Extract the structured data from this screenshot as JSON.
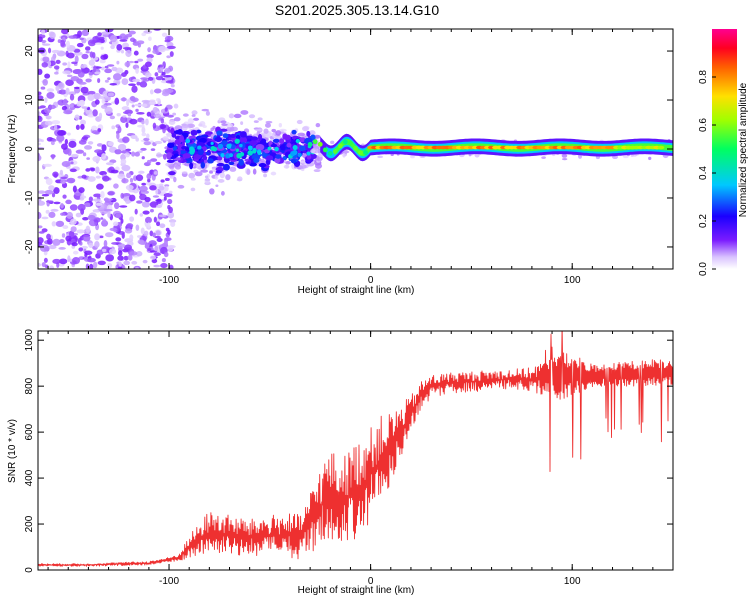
{
  "figure": {
    "title": "S201.2025.305.13.14.G10"
  },
  "chart_data": [
    {
      "type": "heatmap",
      "title": "S201.2025.305.13.14.G10",
      "xlabel": "Height of straight line (km)",
      "ylabel": "Frequency (Hz)",
      "xlim": [
        -165,
        150
      ],
      "ylim": [
        -24.5,
        24.5
      ],
      "xticks": [
        -100,
        0,
        100
      ],
      "yticks": [
        -20,
        -10,
        0,
        10,
        20
      ],
      "grid": false,
      "colorbar": {
        "label": "Normalized spectral amplitude",
        "range": [
          0,
          1
        ],
        "ticks": [
          0.0,
          0.2,
          0.4,
          0.6,
          0.8
        ],
        "tick_labels": [
          "0.0",
          "0.2",
          "0.4",
          "0.6",
          "0.8"
        ],
        "colormap": [
          "#ffffff",
          "#6f00ff",
          "#0000ff",
          "#00ffff",
          "#00ff00",
          "#ffff00",
          "#ff8000",
          "#ff0000",
          "#ff0080"
        ]
      },
      "description_points": {
        "noise_region_x": [
          -165,
          -100
        ],
        "signal_line_start_x": -30,
        "signal_line_freq": 0.3,
        "peak_amplitude_x_range": [
          0,
          120
        ],
        "peak_amplitude": 0.85
      }
    },
    {
      "type": "line",
      "xlabel": "Height of straight line (km)",
      "ylabel": "SNR (10 * v/v)",
      "xlim": [
        -165,
        150
      ],
      "ylim": [
        0,
        1040
      ],
      "xticks": [
        -100,
        0,
        100
      ],
      "yticks": [
        0,
        200,
        400,
        600,
        800,
        1000
      ],
      "grid": false,
      "series": [
        {
          "name": "SNR",
          "color": "#ee3030",
          "x": [
            -165,
            -140,
            -110,
            -100,
            -95,
            -90,
            -80,
            -70,
            -60,
            -50,
            -40,
            -35,
            -30,
            -25,
            -20,
            -15,
            -10,
            -5,
            0,
            5,
            10,
            15,
            20,
            25,
            30,
            40,
            50,
            60,
            70,
            80,
            90,
            95,
            100,
            110,
            120,
            130,
            140,
            150
          ],
          "y": [
            22,
            22,
            30,
            45,
            55,
            100,
            160,
            150,
            140,
            150,
            150,
            140,
            200,
            280,
            330,
            300,
            330,
            360,
            420,
            480,
            530,
            600,
            680,
            760,
            800,
            815,
            820,
            825,
            830,
            830,
            840,
            845,
            850,
            845,
            850,
            855,
            860,
            860
          ],
          "spread": [
            6,
            6,
            8,
            10,
            15,
            50,
            100,
            90,
            80,
            90,
            100,
            100,
            140,
            170,
            200,
            180,
            200,
            220,
            200,
            190,
            160,
            120,
            80,
            60,
            50,
            45,
            45,
            45,
            45,
            50,
            120,
            150,
            130,
            70,
            70,
            80,
            80,
            80
          ]
        }
      ]
    }
  ]
}
